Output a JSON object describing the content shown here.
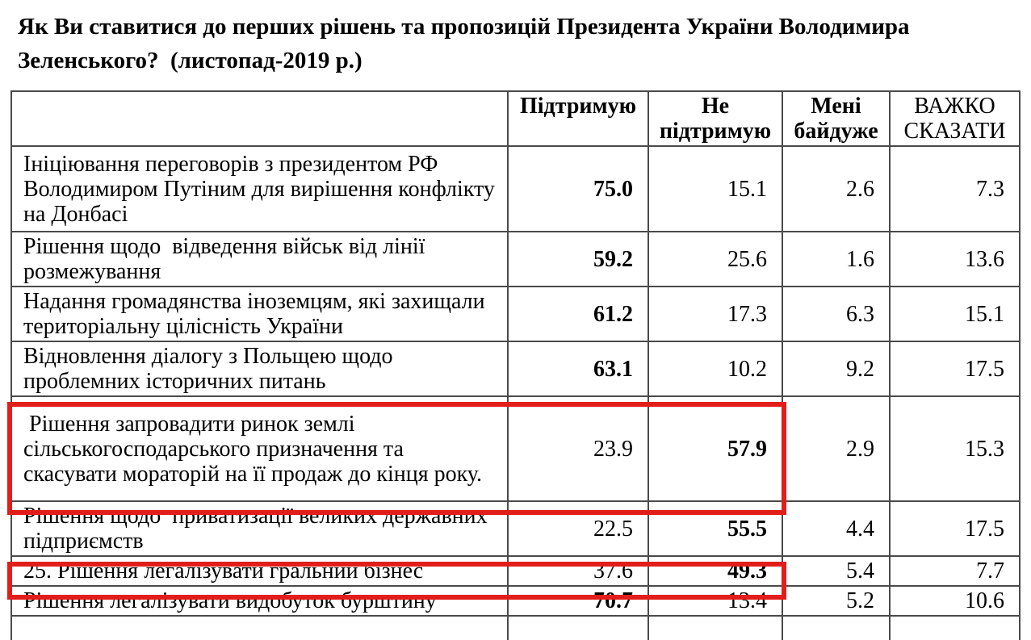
{
  "title": "Як Ви ставитися до перших рішень та пропозицій Президента України Володимира Зеленського?  (листопад-2019 р.)",
  "table": {
    "headers": [
      "",
      "Підтримую",
      "Не підтримую",
      "Мені байдуже",
      "ВАЖКО СКАЗАТИ"
    ],
    "header_bold": [
      false,
      true,
      true,
      true,
      false
    ],
    "highlight_color": "#e21e1a",
    "rows": [
      {
        "label": "Ініціювання переговорів з президентом РФ Володимиром Путіним для вирішення конфлікту на Донбасі",
        "values": [
          "75.0",
          "15.1",
          "2.6",
          "7.3"
        ],
        "bold": [
          true,
          false,
          false,
          false
        ],
        "highlighted": false
      },
      {
        "label": "Рішення щодо  відведення військ від лінії розмежування",
        "values": [
          "59.2",
          "25.6",
          "1.6",
          "13.6"
        ],
        "bold": [
          true,
          false,
          false,
          false
        ],
        "highlighted": false
      },
      {
        "label": "Надання громадянства іноземцям, які захищали територіальну цілісність України",
        "values": [
          "61.2",
          "17.3",
          "6.3",
          "15.1"
        ],
        "bold": [
          true,
          false,
          false,
          false
        ],
        "highlighted": false
      },
      {
        "label": "Відновлення діалогу з Польщею щодо проблемних історичних питань",
        "values": [
          "63.1",
          "10.2",
          "9.2",
          "17.5"
        ],
        "bold": [
          true,
          false,
          false,
          false
        ],
        "highlighted": false
      },
      {
        "label": " Рішення запровадити ринок землі сільськогосподарського призначення та скасувати мораторій на її продаж до кінця року.",
        "values": [
          "23.9",
          "57.9",
          "2.9",
          "15.3"
        ],
        "bold": [
          false,
          true,
          false,
          false
        ],
        "highlighted": true
      },
      {
        "label": "Рішення щодо  приватизації великих державних підприємств",
        "values": [
          "22.5",
          "55.5",
          "4.4",
          "17.5"
        ],
        "bold": [
          false,
          true,
          false,
          false
        ],
        "highlighted": false
      },
      {
        "label": "25. Рішення легалізувати гральний бізнес",
        "values": [
          "37.6",
          "49.3",
          "5.4",
          "7.7"
        ],
        "bold": [
          false,
          true,
          false,
          false
        ],
        "highlighted": true
      },
      {
        "label": "Рішення легалізувати видобуток бурштину",
        "values": [
          "70.7",
          "13.4",
          "5.2",
          "10.6"
        ],
        "bold": [
          true,
          false,
          false,
          false
        ],
        "highlighted": false
      }
    ]
  }
}
